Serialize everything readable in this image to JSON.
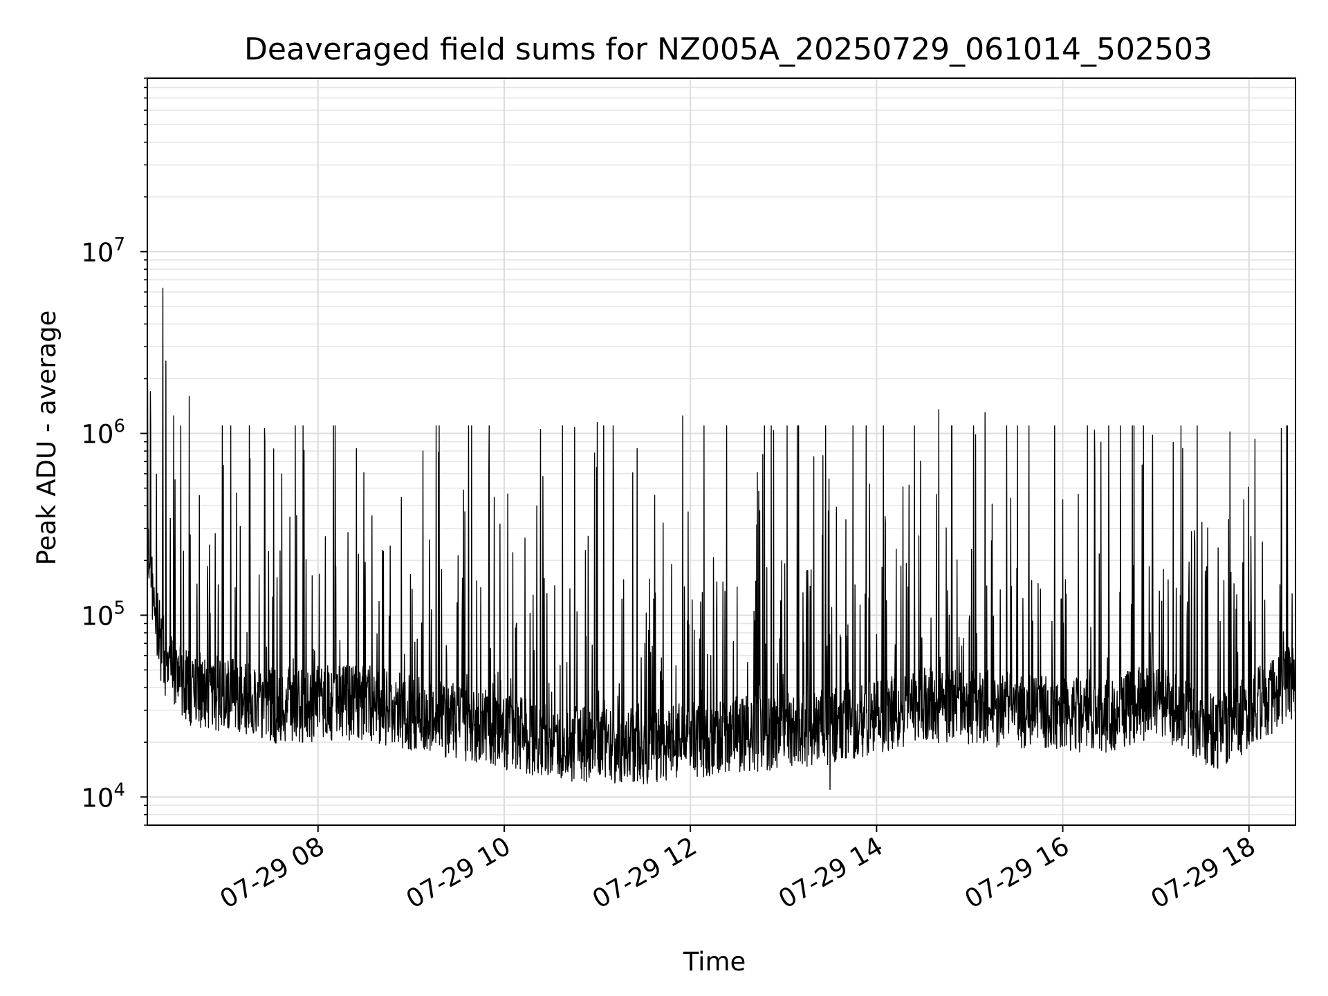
{
  "chart_data": {
    "type": "line",
    "title": "Deaveraged field sums for NZ005A_20250729_061014_502503",
    "xlabel": "Time",
    "ylabel": "Peak ADU - average",
    "y_scale": "log",
    "ylim": [
      7000,
      90000000
    ],
    "xlim": [
      "2025-07-29 06:10",
      "2025-07-29 18:30"
    ],
    "x_ticks": [
      "07-29 08",
      "07-29 10",
      "07-29 12",
      "07-29 14",
      "07-29 16",
      "07-29 18"
    ],
    "x_tick_times": [
      "2025-07-29 08:00",
      "2025-07-29 10:00",
      "2025-07-29 12:00",
      "2025-07-29 14:00",
      "2025-07-29 16:00",
      "2025-07-29 18:00"
    ],
    "y_ticks": [
      {
        "base": "10",
        "exp": "4",
        "value": 10000
      },
      {
        "base": "10",
        "exp": "5",
        "value": 100000
      },
      {
        "base": "10",
        "exp": "6",
        "value": 1000000
      },
      {
        "base": "10",
        "exp": "7",
        "value": 10000000
      }
    ],
    "grid": true,
    "line_color": "#000000",
    "series": [
      {
        "baseline_profile": [
          {
            "t": "2025-07-29 06:10",
            "value": 200000
          },
          {
            "t": "2025-07-29 06:20",
            "value": 60000
          },
          {
            "t": "2025-07-29 06:35",
            "value": 40000
          },
          {
            "t": "2025-07-29 07:30",
            "value": 32000
          },
          {
            "t": "2025-07-29 08:30",
            "value": 33000
          },
          {
            "t": "2025-07-29 09:30",
            "value": 26000
          },
          {
            "t": "2025-07-29 10:30",
            "value": 20000
          },
          {
            "t": "2025-07-29 11:30",
            "value": 19000
          },
          {
            "t": "2025-07-29 12:30",
            "value": 22000
          },
          {
            "t": "2025-07-29 13:30",
            "value": 24000
          },
          {
            "t": "2025-07-29 14:30",
            "value": 32000
          },
          {
            "t": "2025-07-29 15:30",
            "value": 30000
          },
          {
            "t": "2025-07-29 16:30",
            "value": 28000
          },
          {
            "t": "2025-07-29 17:00",
            "value": 35000
          },
          {
            "t": "2025-07-29 17:40",
            "value": 22000
          },
          {
            "t": "2025-07-29 18:30",
            "value": 45000
          }
        ],
        "peaks": [
          {
            "t": "2025-07-29 06:12",
            "value": 1700000
          },
          {
            "t": "2025-07-29 06:20",
            "value": 6300000
          },
          {
            "t": "2025-07-29 06:22",
            "value": 2500000
          },
          {
            "t": "2025-07-29 06:27",
            "value": 1250000
          },
          {
            "t": "2025-07-29 06:37",
            "value": 1600000
          },
          {
            "t": "2025-07-29 11:00",
            "value": 1150000
          },
          {
            "t": "2025-07-29 11:55",
            "value": 1250000
          },
          {
            "t": "2025-07-29 14:40",
            "value": 1350000
          },
          {
            "t": "2025-07-29 15:10",
            "value": 1300000
          }
        ],
        "spike_max": 1100000,
        "minimum": {
          "t": "2025-07-29 13:30",
          "value": 11000
        }
      }
    ]
  }
}
